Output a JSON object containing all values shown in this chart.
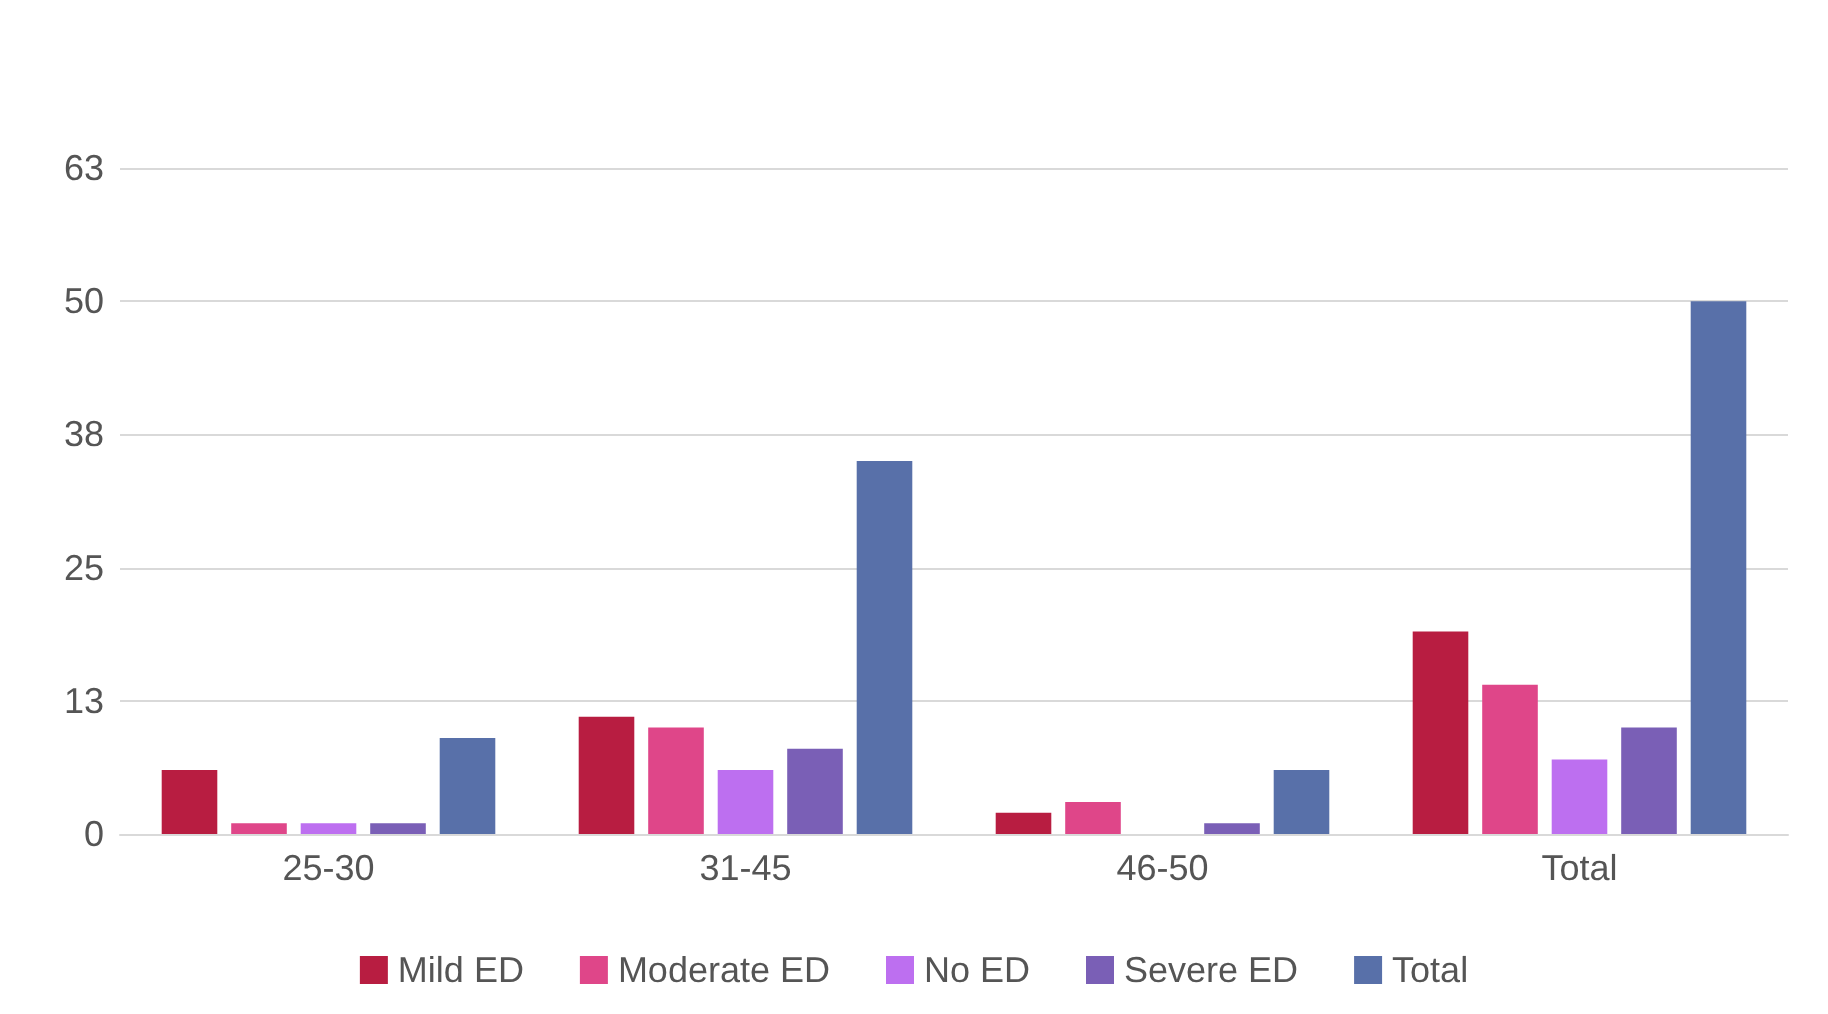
{
  "chart_data": {
    "type": "bar",
    "categories": [
      "25-30",
      "31-45",
      "46-50",
      "Total"
    ],
    "series": [
      {
        "name": "Mild ED",
        "color": "#b81d41",
        "values": [
          6,
          11,
          2,
          19
        ]
      },
      {
        "name": "Moderate ED",
        "color": "#df4689",
        "values": [
          1,
          10,
          3,
          14
        ]
      },
      {
        "name": "No ED",
        "color": "#bd6ff0",
        "values": [
          1,
          6,
          0,
          7
        ]
      },
      {
        "name": "Severe ED",
        "color": "#7a5fb6",
        "values": [
          1,
          8,
          1,
          10
        ]
      },
      {
        "name": "Total",
        "color": "#5870a9",
        "values": [
          9,
          35,
          6,
          50
        ]
      }
    ],
    "ylim": [
      0,
      62.5
    ],
    "yticks": [
      0,
      {
        "value": 12.5,
        "label": "13"
      },
      25,
      {
        "value": 37.5,
        "label": "38"
      },
      50,
      {
        "value": 62.5,
        "label": "63"
      }
    ],
    "grid": "y",
    "legend": "bottom"
  }
}
